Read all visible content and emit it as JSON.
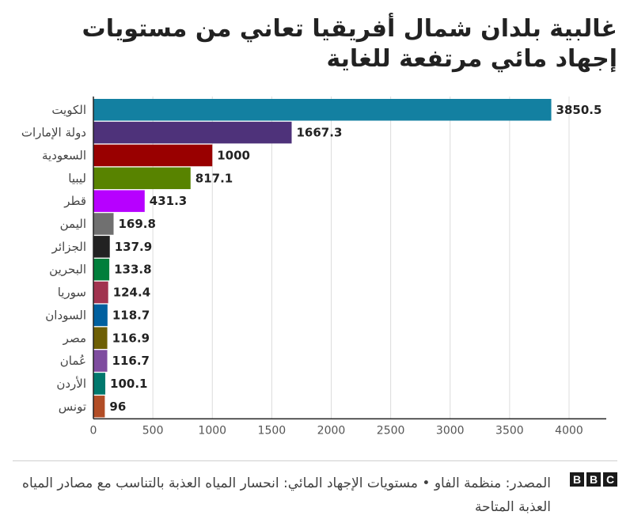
{
  "title": "غالبية بلدان شمال أفريقيا تعاني من مستويات إجهاد مائي مرتفعة للغاية",
  "source": "المصدر: منظمة الفاو • مستويات الإجهاد المائي: انحسار المياه العذبة بالتناسب مع مصادر المياه العذبة المتاحة",
  "logo": [
    "B",
    "B",
    "C"
  ],
  "chart_data": {
    "type": "bar",
    "orientation": "horizontal",
    "categories": [
      "الكويت",
      "دولة الإمارات",
      "السعودية",
      "ليبيا",
      "قطر",
      "اليمن",
      "الجزائر",
      "البحرين",
      "سوريا",
      "السودان",
      "مصر",
      "عُمان",
      "الأردن",
      "تونس"
    ],
    "values": [
      3850.5,
      1667.3,
      1000,
      817.1,
      431.3,
      169.8,
      137.9,
      133.8,
      124.4,
      118.7,
      116.9,
      116.7,
      100.1,
      96
    ],
    "value_labels": [
      "3850.5",
      "1667.3",
      "1000",
      "817.1",
      "431.3",
      "169.8",
      "137.9",
      "133.8",
      "124.4",
      "118.7",
      "116.9",
      "116.7",
      "100.1",
      "96"
    ],
    "colors": [
      "#1380a1",
      "#4e327a",
      "#990000",
      "#588300",
      "#b700ff",
      "#707070",
      "#222222",
      "#007f3b",
      "#a1334f",
      "#00609f",
      "#6e5f05",
      "#7e4c9f",
      "#00786d",
      "#b24d26"
    ],
    "xlim": [
      0,
      4000
    ],
    "xticks": [
      0,
      500,
      1000,
      1500,
      2000,
      2500,
      3000,
      3500,
      4000
    ],
    "grid": true,
    "title": "غالبية بلدان شمال أفريقيا تعاني من مستويات إجهاد مائي مرتفعة للغاية",
    "xlabel": "",
    "ylabel": ""
  }
}
